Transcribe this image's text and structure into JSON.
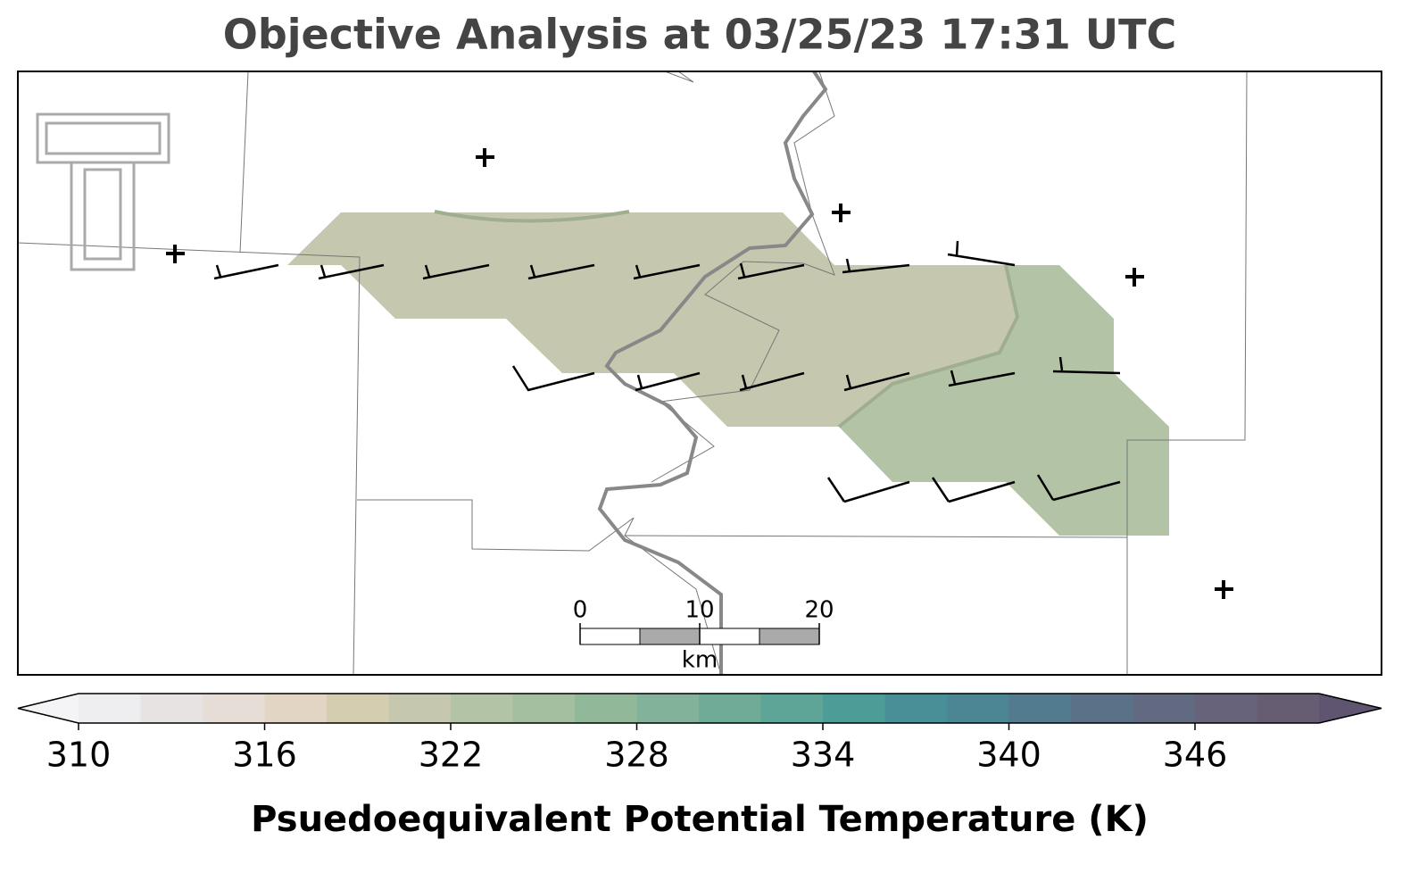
{
  "title": "Objective Analysis at 03/25/23 17:31 UTC",
  "scale_bar": {
    "ticks": [
      0,
      10,
      20
    ],
    "unit": "km"
  },
  "colorbar": {
    "label": "Psuedoequivalent Potential Temperature (K)",
    "range": [
      310,
      350
    ],
    "ticks": [
      310,
      316,
      322,
      328,
      334,
      340,
      346
    ],
    "colors": [
      "#eeedf0",
      "#e8e3e3",
      "#e6ddd6",
      "#e3d5c3",
      "#d5cdb0",
      "#c5c8ae",
      "#b3c3a6",
      "#a3bfa0",
      "#92b89a",
      "#82b39a",
      "#70ab98",
      "#5ea597",
      "#4e9c98",
      "#488f98",
      "#4c8594",
      "#527b8f",
      "#5b7188",
      "#626a82",
      "#67637b",
      "#675d73"
    ],
    "under_color": "#f4f3f6",
    "over_color": "#5f5570"
  }
}
